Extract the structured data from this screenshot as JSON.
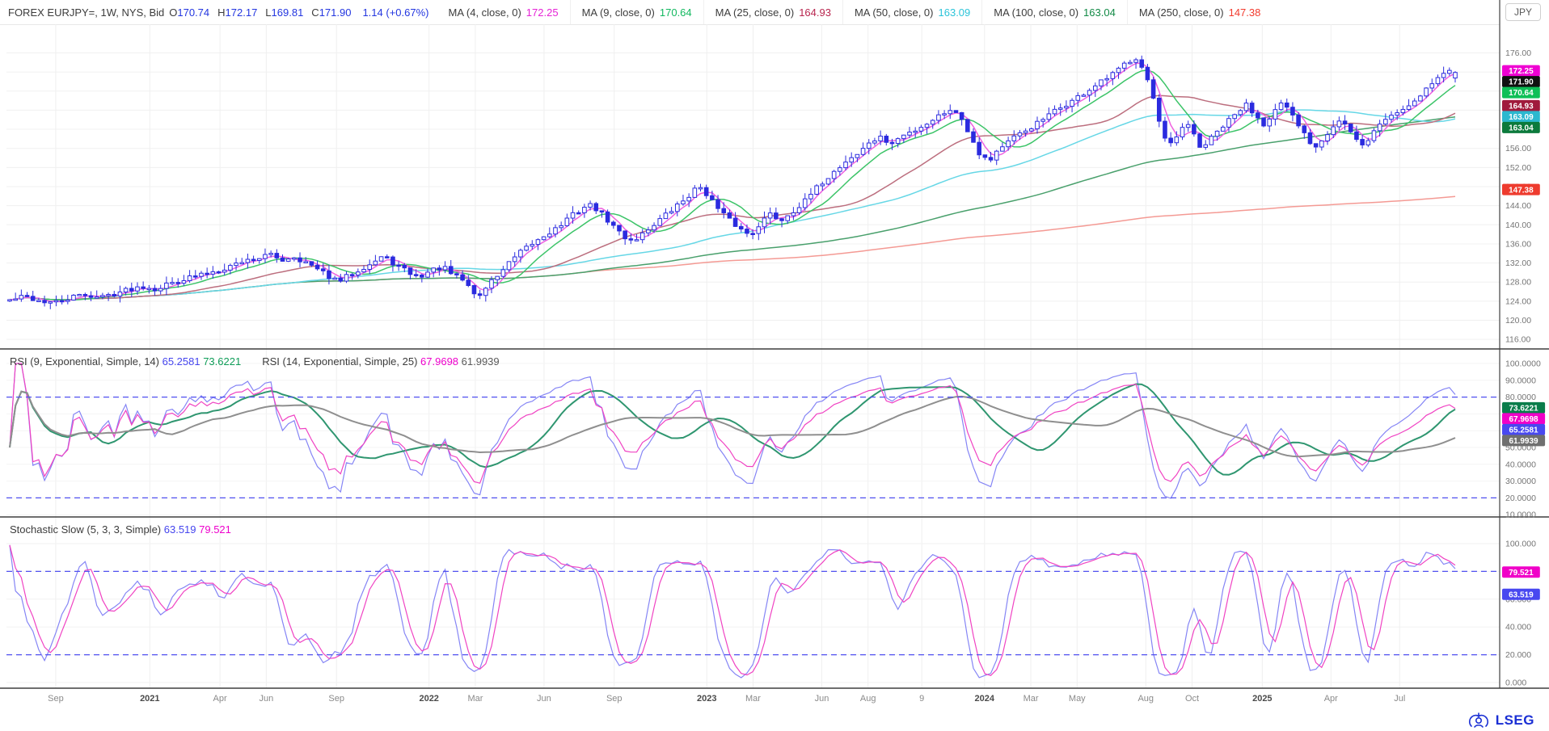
{
  "header": {
    "symbol": "FOREX EURJPY=, 1W, NYS, Bid",
    "fields": [
      {
        "label": "O",
        "value": "170.74"
      },
      {
        "label": "H",
        "value": "172.17"
      },
      {
        "label": "L",
        "value": "169.81"
      },
      {
        "label": "C",
        "value": "171.90"
      }
    ],
    "change": "1.14 (+0.67%)",
    "value_color": "#2336e0",
    "currency": "JPY"
  },
  "rsi_legend": {
    "items": [
      {
        "label": "RSI (9, Exponential, Simple, 14)",
        "v1": "65.2581",
        "v1_color": "#4545ee",
        "v2": "73.6221",
        "v2_color": "#0f9d58"
      },
      {
        "label": "RSI (14, Exponential, Simple, 25)",
        "v1": "67.9698",
        "v1_color": "#ee00cc",
        "v2": "61.9939",
        "v2_color": "#5a5a5a"
      }
    ]
  },
  "stoch_legend": {
    "label": "Stochastic Slow (5, 3, 3, Simple)",
    "v1": "63.519",
    "v1_color": "#4545ee",
    "v2": "79.521",
    "v2_color": "#ee00cc"
  },
  "footer": {
    "brand": "LSEG",
    "brand_color": "#1a2fd4"
  },
  "chart_data": {
    "type": "candlestick",
    "symbol": "EURJPY=",
    "interval": "1W",
    "venue": "NYS",
    "side": "Bid",
    "last_bar": {
      "open": 170.74,
      "high": 172.17,
      "low": 169.81,
      "close": 171.9,
      "change": 1.14,
      "change_pct": "+0.67%"
    },
    "num_bars": 250,
    "candle_color": "#2b2bdf",
    "ylim": [
      114,
      182
    ],
    "y_ticks": [
      116,
      120,
      124,
      128,
      132,
      136,
      140,
      144,
      148,
      152,
      156,
      160,
      164,
      168,
      172,
      176
    ],
    "current_price_badge": {
      "value": 171.9,
      "color": "#101010"
    },
    "price_keypoints": [
      [
        0.002,
        124.2
      ],
      [
        0.012,
        125.0
      ],
      [
        0.022,
        124.1
      ],
      [
        0.032,
        123.6
      ],
      [
        0.042,
        124.6
      ],
      [
        0.052,
        125.4
      ],
      [
        0.062,
        124.8
      ],
      [
        0.072,
        125.6
      ],
      [
        0.082,
        126.5
      ],
      [
        0.092,
        127.2
      ],
      [
        0.1,
        126.6
      ],
      [
        0.108,
        127.6
      ],
      [
        0.118,
        128.6
      ],
      [
        0.128,
        129.3
      ],
      [
        0.138,
        130.2
      ],
      [
        0.148,
        131.2
      ],
      [
        0.158,
        132.4
      ],
      [
        0.168,
        133.0
      ],
      [
        0.176,
        133.8
      ],
      [
        0.184,
        132.6
      ],
      [
        0.192,
        133.4
      ],
      [
        0.2,
        132.2
      ],
      [
        0.208,
        130.6
      ],
      [
        0.216,
        129.2
      ],
      [
        0.222,
        127.9
      ],
      [
        0.23,
        129.6
      ],
      [
        0.238,
        131.0
      ],
      [
        0.246,
        132.2
      ],
      [
        0.252,
        133.4
      ],
      [
        0.26,
        131.8
      ],
      [
        0.268,
        130.2
      ],
      [
        0.276,
        129.0
      ],
      [
        0.284,
        130.4
      ],
      [
        0.292,
        131.2
      ],
      [
        0.298,
        129.6
      ],
      [
        0.306,
        128.4
      ],
      [
        0.312,
        126.2
      ],
      [
        0.316,
        124.6
      ],
      [
        0.322,
        127.4
      ],
      [
        0.33,
        129.8
      ],
      [
        0.338,
        132.4
      ],
      [
        0.346,
        134.6
      ],
      [
        0.354,
        136.4
      ],
      [
        0.362,
        138.2
      ],
      [
        0.37,
        139.6
      ],
      [
        0.378,
        141.8
      ],
      [
        0.386,
        143.6
      ],
      [
        0.392,
        144.2
      ],
      [
        0.398,
        142.4
      ],
      [
        0.406,
        139.8
      ],
      [
        0.414,
        137.4
      ],
      [
        0.42,
        136.8
      ],
      [
        0.428,
        138.6
      ],
      [
        0.436,
        140.8
      ],
      [
        0.444,
        142.6
      ],
      [
        0.452,
        144.8
      ],
      [
        0.458,
        146.4
      ],
      [
        0.464,
        148.2
      ],
      [
        0.47,
        146.2
      ],
      [
        0.476,
        143.4
      ],
      [
        0.484,
        141.0
      ],
      [
        0.492,
        139.0
      ],
      [
        0.498,
        137.8
      ],
      [
        0.504,
        140.2
      ],
      [
        0.512,
        142.4
      ],
      [
        0.518,
        140.8
      ],
      [
        0.526,
        142.8
      ],
      [
        0.534,
        144.6
      ],
      [
        0.54,
        146.8
      ],
      [
        0.548,
        149.4
      ],
      [
        0.556,
        151.6
      ],
      [
        0.564,
        153.8
      ],
      [
        0.572,
        155.2
      ],
      [
        0.578,
        157.4
      ],
      [
        0.586,
        158.2
      ],
      [
        0.592,
        156.8
      ],
      [
        0.6,
        158.6
      ],
      [
        0.608,
        159.8
      ],
      [
        0.616,
        161.2
      ],
      [
        0.624,
        162.8
      ],
      [
        0.632,
        164.3
      ],
      [
        0.64,
        162.2
      ],
      [
        0.646,
        158.4
      ],
      [
        0.652,
        154.8
      ],
      [
        0.658,
        153.4
      ],
      [
        0.664,
        155.8
      ],
      [
        0.672,
        157.6
      ],
      [
        0.68,
        159.2
      ],
      [
        0.688,
        160.8
      ],
      [
        0.696,
        162.4
      ],
      [
        0.704,
        164.2
      ],
      [
        0.712,
        165.6
      ],
      [
        0.72,
        167.2
      ],
      [
        0.728,
        168.8
      ],
      [
        0.736,
        170.4
      ],
      [
        0.744,
        172.2
      ],
      [
        0.75,
        174.0
      ],
      [
        0.756,
        175.2
      ],
      [
        0.762,
        172.6
      ],
      [
        0.768,
        166.4
      ],
      [
        0.774,
        158.8
      ],
      [
        0.778,
        156.2
      ],
      [
        0.784,
        158.4
      ],
      [
        0.79,
        161.2
      ],
      [
        0.796,
        158.6
      ],
      [
        0.8,
        155.8
      ],
      [
        0.806,
        157.8
      ],
      [
        0.812,
        159.8
      ],
      [
        0.818,
        161.6
      ],
      [
        0.824,
        163.4
      ],
      [
        0.83,
        165.2
      ],
      [
        0.836,
        163.2
      ],
      [
        0.842,
        161.2
      ],
      [
        0.848,
        163.4
      ],
      [
        0.854,
        165.4
      ],
      [
        0.86,
        163.2
      ],
      [
        0.866,
        160.4
      ],
      [
        0.872,
        157.8
      ],
      [
        0.876,
        156.2
      ],
      [
        0.882,
        158.4
      ],
      [
        0.888,
        160.6
      ],
      [
        0.894,
        162.2
      ],
      [
        0.898,
        160.2
      ],
      [
        0.904,
        157.6
      ],
      [
        0.908,
        156.4
      ],
      [
        0.914,
        158.8
      ],
      [
        0.92,
        161.2
      ],
      [
        0.926,
        162.8
      ],
      [
        0.932,
        163.6
      ],
      [
        0.938,
        164.8
      ],
      [
        0.944,
        166.4
      ],
      [
        0.95,
        168.4
      ],
      [
        0.956,
        170.2
      ],
      [
        0.962,
        171.6
      ],
      [
        0.966,
        172.2
      ],
      [
        0.97,
        171.9
      ]
    ],
    "moving_averages": [
      {
        "label": "MA (4, close, 0)",
        "period": 4,
        "value": 172.25,
        "text_color": "#e623d6",
        "line_color": "#ef62e0",
        "badge_color": "#ef00d2"
      },
      {
        "label": "MA (9, close, 0)",
        "period": 9,
        "value": 170.64,
        "text_color": "#12b85f",
        "line_color": "#3cc468",
        "badge_color": "#0fbf57"
      },
      {
        "label": "MA (25, close, 0)",
        "period": 25,
        "value": 164.93,
        "text_color": "#b8254e",
        "line_color": "#bc6e7e",
        "badge_color": "#a01a3c"
      },
      {
        "label": "MA (50, close, 0)",
        "period": 50,
        "value": 163.09,
        "text_color": "#2cc4d9",
        "line_color": "#66d7e6",
        "badge_color": "#2cb8cf"
      },
      {
        "label": "MA (100, close, 0)",
        "period": 100,
        "value": 163.04,
        "text_color": "#128a46",
        "line_color": "#49a06c",
        "badge_color": "#0c7a3c"
      },
      {
        "label": "MA (250, close, 0)",
        "period": 250,
        "value": 147.38,
        "text_color": "#f23b2e",
        "line_color": "#f49a94",
        "badge_color": "#ee3b2e"
      }
    ],
    "rsi": {
      "y_ticks": [
        10,
        20,
        30,
        40,
        50,
        60,
        70,
        80,
        90,
        100
      ],
      "levels": [
        80,
        20
      ],
      "level_color": "#5050f0",
      "series": [
        {
          "name": "RSI 9",
          "period": 9,
          "last": 65.2581,
          "color": "#8585f5",
          "badge_color": "#4848f0",
          "width": 1.2
        },
        {
          "name": "RSI 9 avg",
          "avg_of": 9,
          "avg_period": 14,
          "last": 73.6221,
          "color": "#2f9670",
          "badge_color": "#0a7d4b",
          "width": 2
        },
        {
          "name": "RSI 14",
          "period": 14,
          "last": 67.9698,
          "color": "#f043c3",
          "badge_color": "#f000c8",
          "width": 1.2
        },
        {
          "name": "RSI 14 avg",
          "avg_of": 14,
          "avg_period": 25,
          "last": 61.9939,
          "color": "#8f8f8f",
          "badge_color": "#6f6f6f",
          "width": 2
        }
      ]
    },
    "stochastic": {
      "y_ticks": [
        0,
        20,
        40,
        60,
        80,
        100
      ],
      "levels": [
        80,
        20
      ],
      "level_color": "#5050f0",
      "k": {
        "period": 5,
        "smooth": 3,
        "last": 63.519,
        "color": "#8585f5",
        "badge_color": "#4848f0"
      },
      "d": {
        "period": 3,
        "last": 79.521,
        "color": "#f043c3",
        "badge_color": "#f000c8"
      }
    },
    "x_labels": [
      {
        "text": "Sep",
        "f": 0.033,
        "bold": false
      },
      {
        "text": "2021",
        "f": 0.096,
        "bold": true
      },
      {
        "text": "Apr",
        "f": 0.143,
        "bold": false
      },
      {
        "text": "Jun",
        "f": 0.174,
        "bold": false
      },
      {
        "text": "Sep",
        "f": 0.221,
        "bold": false
      },
      {
        "text": "2022",
        "f": 0.283,
        "bold": true
      },
      {
        "text": "Mar",
        "f": 0.314,
        "bold": false
      },
      {
        "text": "Jun",
        "f": 0.36,
        "bold": false
      },
      {
        "text": "Sep",
        "f": 0.407,
        "bold": false
      },
      {
        "text": "2023",
        "f": 0.469,
        "bold": true
      },
      {
        "text": "Mar",
        "f": 0.5,
        "bold": false
      },
      {
        "text": "Jun",
        "f": 0.546,
        "bold": false
      },
      {
        "text": "Aug",
        "f": 0.577,
        "bold": false
      },
      {
        "text": "9",
        "f": 0.613,
        "bold": false
      },
      {
        "text": "2024",
        "f": 0.655,
        "bold": true
      },
      {
        "text": "Mar",
        "f": 0.686,
        "bold": false
      },
      {
        "text": "May",
        "f": 0.717,
        "bold": false
      },
      {
        "text": "Aug",
        "f": 0.763,
        "bold": false
      },
      {
        "text": "Oct",
        "f": 0.794,
        "bold": false
      },
      {
        "text": "2025",
        "f": 0.841,
        "bold": true
      },
      {
        "text": "Apr",
        "f": 0.887,
        "bold": false
      },
      {
        "text": "Jul",
        "f": 0.933,
        "bold": false
      }
    ]
  }
}
